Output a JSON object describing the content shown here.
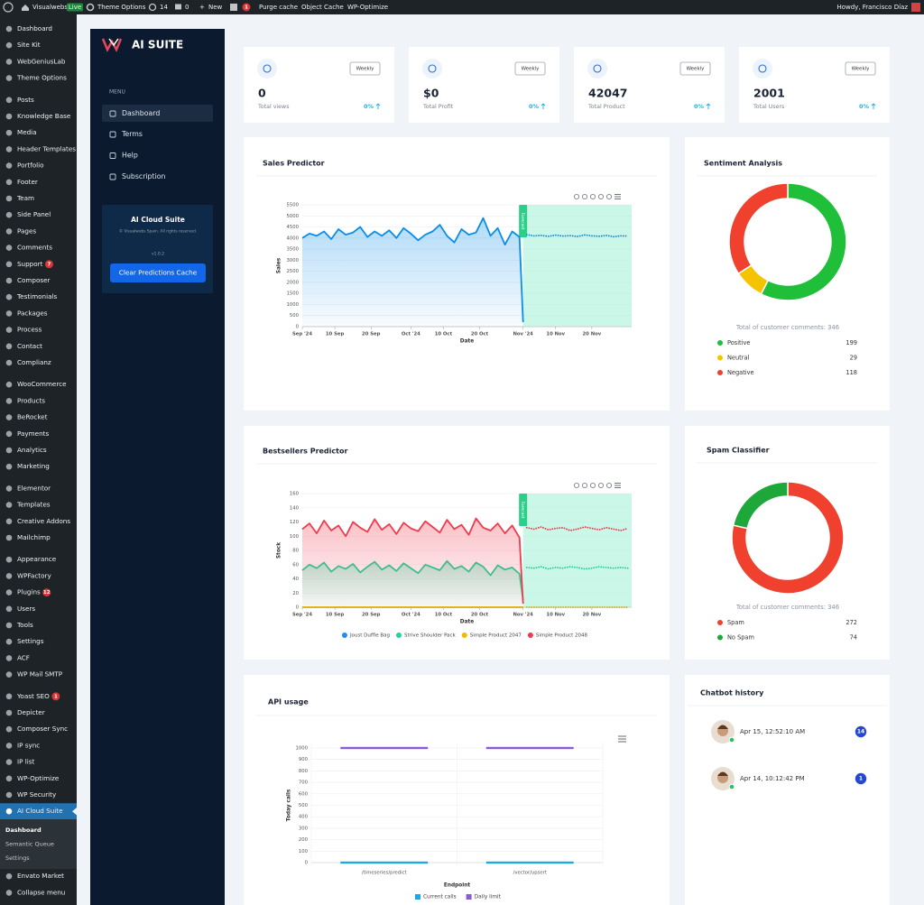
{
  "admin_bar": {
    "site": "Visualwebs",
    "live": "Live",
    "theme_options": "Theme Options",
    "updates": 14,
    "comments": 0,
    "new": "New",
    "seo_badge": 1,
    "purge_cache": "Purge cache",
    "object_cache": "Object Cache",
    "wp_optimize": "WP-Optimize",
    "howdy": "Howdy, Francisco Díaz"
  },
  "admin_menu": {
    "items": [
      {
        "label": "Dashboard"
      },
      {
        "label": "Site Kit"
      },
      {
        "label": "WebGeniusLab"
      },
      {
        "label": "Theme Options"
      },
      {
        "label": "Posts"
      },
      {
        "label": "Knowledge Base"
      },
      {
        "label": "Media"
      },
      {
        "label": "Header Templates"
      },
      {
        "label": "Portfolio"
      },
      {
        "label": "Footer"
      },
      {
        "label": "Team"
      },
      {
        "label": "Side Panel"
      },
      {
        "label": "Pages"
      },
      {
        "label": "Comments"
      },
      {
        "label": "Support",
        "badge": 7
      },
      {
        "label": "Composer"
      },
      {
        "label": "Testimonials"
      },
      {
        "label": "Packages"
      },
      {
        "label": "Process"
      },
      {
        "label": "Contact"
      },
      {
        "label": "Complianz"
      },
      {
        "label": "WooCommerce"
      },
      {
        "label": "Products"
      },
      {
        "label": "BeRocket"
      },
      {
        "label": "Payments"
      },
      {
        "label": "Analytics"
      },
      {
        "label": "Marketing"
      },
      {
        "label": "Elementor"
      },
      {
        "label": "Templates"
      },
      {
        "label": "Creative Addons"
      },
      {
        "label": "Mailchimp"
      },
      {
        "label": "Appearance"
      },
      {
        "label": "WPFactory"
      },
      {
        "label": "Plugins",
        "badge": 12
      },
      {
        "label": "Users"
      },
      {
        "label": "Tools"
      },
      {
        "label": "Settings"
      },
      {
        "label": "ACF"
      },
      {
        "label": "WP Mail SMTP"
      },
      {
        "label": "Yoast SEO",
        "badge": 1
      },
      {
        "label": "Depicter"
      },
      {
        "label": "Composer Sync"
      },
      {
        "label": "IP sync"
      },
      {
        "label": "IP list"
      },
      {
        "label": "WP-Optimize"
      },
      {
        "label": "WP Security"
      },
      {
        "label": "AI Cloud Suite",
        "submenu": [
          "Dashboard",
          "Semantic Queue",
          "Settings"
        ]
      },
      {
        "label": "Envato Market"
      },
      {
        "label": "Collapse menu"
      }
    ]
  },
  "plugin_sidebar": {
    "logo": "AI SUITE",
    "menu_heading": "MENU",
    "nav": [
      "Dashboard",
      "Terms",
      "Help",
      "Subscription"
    ],
    "card": {
      "title": "AI Cloud Suite",
      "copyright": "© Visualwebs Spain. All rights reserved.",
      "version": "v1.0.2",
      "button": "Clear Predictions Cache"
    }
  },
  "stats": [
    {
      "value": "0",
      "label": "Total views",
      "period": "Weekly",
      "change": "0%"
    },
    {
      "value": "$0",
      "label": "Total Profit",
      "period": "Weekly",
      "change": "0%"
    },
    {
      "value": "42047",
      "label": "Total Product",
      "period": "Weekly",
      "change": "0%"
    },
    {
      "value": "2001",
      "label": "Total Users",
      "period": "Weekly",
      "change": "0%"
    }
  ],
  "sales_predictor": {
    "type": "line",
    "title": "Sales Predictor",
    "x_label": "Date",
    "y_label": "Sales",
    "forecast_label": "Forecast",
    "x": [
      "2024-09-01",
      "2024-09-03",
      "2024-09-05",
      "2024-09-07",
      "2024-09-09",
      "2024-09-11",
      "2024-09-13",
      "2024-09-15",
      "2024-09-17",
      "2024-09-19",
      "2024-09-21",
      "2024-09-23",
      "2024-09-25",
      "2024-09-27",
      "2024-09-29",
      "2024-10-01",
      "2024-10-03",
      "2024-10-05",
      "2024-10-07",
      "2024-10-09",
      "2024-10-11",
      "2024-10-13",
      "2024-10-15",
      "2024-10-17",
      "2024-10-19",
      "2024-10-21",
      "2024-10-23",
      "2024-10-25",
      "2024-10-27",
      "2024-10-29",
      "2024-10-31",
      "2024-11-01",
      "2024-11-02",
      "2024-11-04",
      "2024-11-06",
      "2024-11-08",
      "2024-11-10",
      "2024-11-12",
      "2024-11-14",
      "2024-11-16",
      "2024-11-18",
      "2024-11-20",
      "2024-11-22",
      "2024-11-24",
      "2024-11-26",
      "2024-11-28",
      "2024-11-30"
    ],
    "xlim": [
      "2024-09-01",
      "2024-12-01"
    ],
    "xticks": [
      {
        "value": "2024-09-01",
        "label": "Sep '24"
      },
      {
        "value": "2024-09-10",
        "label": "10 Sep"
      },
      {
        "value": "2024-09-20",
        "label": "20 Sep"
      },
      {
        "value": "2024-10-01",
        "label": "Oct '24"
      },
      {
        "value": "2024-10-10",
        "label": "10 Oct"
      },
      {
        "value": "2024-10-20",
        "label": "20 Oct"
      },
      {
        "value": "2024-11-01",
        "label": "Nov '24"
      },
      {
        "value": "2024-11-10",
        "label": "10 Nov"
      },
      {
        "value": "2024-11-20",
        "label": "20 Nov"
      }
    ],
    "ylim": [
      0,
      5500
    ],
    "yticks": [
      0,
      500,
      1000,
      1500,
      2000,
      2500,
      3000,
      3500,
      4000,
      4500,
      5000,
      5500
    ],
    "grid": true,
    "series": [
      {
        "color": "#0a8de8",
        "values": [
          4000,
          4200,
          4100,
          4300,
          3950,
          4400,
          4150,
          4250,
          4500,
          4050,
          4300,
          4100,
          4350,
          4000,
          4450,
          4200,
          3900,
          4150,
          4300,
          4600,
          4100,
          3800,
          4400,
          4150,
          4250,
          4900,
          4100,
          4450,
          3700,
          4300,
          4050,
          200,
          null,
          null,
          null,
          null,
          null,
          null,
          null,
          null,
          null,
          null,
          null,
          null,
          null,
          null,
          null
        ],
        "forecast": [
          null,
          null,
          null,
          null,
          null,
          null,
          null,
          null,
          null,
          null,
          null,
          null,
          null,
          null,
          null,
          null,
          null,
          null,
          null,
          null,
          null,
          null,
          null,
          null,
          null,
          null,
          null,
          null,
          null,
          null,
          null,
          null,
          4150,
          4100,
          4120,
          4080,
          4130,
          4090,
          4110,
          4070,
          4140,
          4100,
          4080,
          4120,
          4060,
          4100,
          4090
        ]
      }
    ]
  },
  "sentiment_analysis": {
    "type": "pie",
    "title": "Sentiment Analysis",
    "total_label": "Total of customer comments: 346",
    "categories": [
      "Positive",
      "Neutral",
      "Negative"
    ],
    "values": [
      199,
      29,
      118
    ],
    "colors": [
      "#1fbf3a",
      "#f5c400",
      "#f0402e"
    ]
  },
  "bestsellers_predictor": {
    "type": "line",
    "title": "Bestsellers Predictor",
    "x_label": "Date",
    "y_label": "Stock",
    "forecast_label": "Forecast",
    "x": [
      "2024-09-01",
      "2024-09-03",
      "2024-09-05",
      "2024-09-07",
      "2024-09-09",
      "2024-09-11",
      "2024-09-13",
      "2024-09-15",
      "2024-09-17",
      "2024-09-19",
      "2024-09-21",
      "2024-09-23",
      "2024-09-25",
      "2024-09-27",
      "2024-09-29",
      "2024-10-01",
      "2024-10-03",
      "2024-10-05",
      "2024-10-07",
      "2024-10-09",
      "2024-10-11",
      "2024-10-13",
      "2024-10-15",
      "2024-10-17",
      "2024-10-19",
      "2024-10-21",
      "2024-10-23",
      "2024-10-25",
      "2024-10-27",
      "2024-10-29",
      "2024-10-31",
      "2024-11-01",
      "2024-11-02",
      "2024-11-04",
      "2024-11-06",
      "2024-11-08",
      "2024-11-10",
      "2024-11-12",
      "2024-11-14",
      "2024-11-16",
      "2024-11-18",
      "2024-11-20",
      "2024-11-22",
      "2024-11-24",
      "2024-11-26",
      "2024-11-28",
      "2024-11-30"
    ],
    "xlim": [
      "2024-09-01",
      "2024-12-01"
    ],
    "xticks": [
      {
        "value": "2024-09-01",
        "label": "Sep '24"
      },
      {
        "value": "2024-09-10",
        "label": "10 Sep"
      },
      {
        "value": "2024-09-20",
        "label": "20 Sep"
      },
      {
        "value": "2024-10-01",
        "label": "Oct '24"
      },
      {
        "value": "2024-10-10",
        "label": "10 Oct"
      },
      {
        "value": "2024-10-20",
        "label": "20 Oct"
      },
      {
        "value": "2024-11-01",
        "label": "Nov '24"
      },
      {
        "value": "2024-11-10",
        "label": "10 Nov"
      },
      {
        "value": "2024-11-20",
        "label": "20 Nov"
      }
    ],
    "ylim": [
      0,
      160
    ],
    "yticks": [
      0,
      20,
      40,
      60,
      80,
      100,
      120,
      140,
      160
    ],
    "grid": true,
    "series": [
      {
        "name": "Joust Duffle Bag",
        "color": "#1e8ff0",
        "values": [
          0,
          0,
          0,
          0,
          0,
          0,
          0,
          0,
          0,
          0,
          0,
          0,
          0,
          0,
          0,
          0,
          0,
          0,
          0,
          0,
          0,
          0,
          0,
          0,
          0,
          0,
          0,
          0,
          0,
          0,
          0,
          0,
          null,
          null,
          null,
          null,
          null,
          null,
          null,
          null,
          null,
          null,
          null,
          null,
          null,
          null,
          null
        ],
        "forecast": [
          null,
          null,
          null,
          null,
          null,
          null,
          null,
          null,
          null,
          null,
          null,
          null,
          null,
          null,
          null,
          null,
          null,
          null,
          null,
          null,
          null,
          null,
          null,
          null,
          null,
          null,
          null,
          null,
          null,
          null,
          null,
          null,
          0,
          0,
          0,
          0,
          0,
          0,
          0,
          0,
          0,
          0,
          0,
          0,
          0,
          0,
          0
        ]
      },
      {
        "name": "Strive Shoulder Pack",
        "color": "#1ed59b",
        "values": [
          52,
          60,
          55,
          63,
          50,
          58,
          54,
          61,
          49,
          57,
          64,
          53,
          59,
          51,
          62,
          55,
          48,
          60,
          56,
          52,
          65,
          54,
          58,
          50,
          63,
          57,
          45,
          59,
          53,
          56,
          47,
          10,
          null,
          null,
          null,
          null,
          null,
          null,
          null,
          null,
          null,
          null,
          null,
          null,
          null,
          null,
          null
        ],
        "forecast": [
          null,
          null,
          null,
          null,
          null,
          null,
          null,
          null,
          null,
          null,
          null,
          null,
          null,
          null,
          null,
          null,
          null,
          null,
          null,
          null,
          null,
          null,
          null,
          null,
          null,
          null,
          null,
          null,
          null,
          null,
          null,
          null,
          56,
          55,
          57,
          54,
          56,
          55,
          57,
          56,
          54,
          55,
          57,
          56,
          55,
          56,
          55
        ]
      },
      {
        "name": "Simple Product 2047",
        "color": "#f5b800",
        "values": [
          0,
          0,
          0,
          0,
          0,
          0,
          0,
          0,
          0,
          0,
          0,
          0,
          0,
          0,
          0,
          0,
          0,
          0,
          0,
          0,
          0,
          0,
          0,
          0,
          0,
          0,
          0,
          0,
          0,
          0,
          0,
          0,
          null,
          null,
          null,
          null,
          null,
          null,
          null,
          null,
          null,
          null,
          null,
          null,
          null,
          null,
          null
        ],
        "forecast": [
          null,
          null,
          null,
          null,
          null,
          null,
          null,
          null,
          null,
          null,
          null,
          null,
          null,
          null,
          null,
          null,
          null,
          null,
          null,
          null,
          null,
          null,
          null,
          null,
          null,
          null,
          null,
          null,
          null,
          null,
          null,
          null,
          0,
          0,
          0,
          0,
          0,
          0,
          0,
          0,
          0,
          0,
          0,
          0,
          0,
          0,
          0
        ]
      },
      {
        "name": "Simple Product 2048",
        "color": "#ef3b4e",
        "values": [
          110,
          118,
          104,
          122,
          108,
          115,
          100,
          120,
          112,
          106,
          124,
          109,
          117,
          103,
          119,
          111,
          107,
          121,
          113,
          105,
          123,
          110,
          116,
          102,
          125,
          112,
          108,
          118,
          104,
          115,
          98,
          5,
          null,
          null,
          null,
          null,
          null,
          null,
          null,
          null,
          null,
          null,
          null,
          null,
          null,
          null,
          null
        ],
        "forecast": [
          null,
          null,
          null,
          null,
          null,
          null,
          null,
          null,
          null,
          null,
          null,
          null,
          null,
          null,
          null,
          null,
          null,
          null,
          null,
          null,
          null,
          null,
          null,
          null,
          null,
          null,
          null,
          null,
          null,
          null,
          null,
          null,
          112,
          110,
          113,
          109,
          111,
          112,
          108,
          110,
          113,
          111,
          109,
          112,
          110,
          108,
          111
        ]
      }
    ]
  },
  "spam_classifier": {
    "type": "pie",
    "title": "Spam Classifier",
    "total_label": "Total of customer comments: 346",
    "categories": [
      "Spam",
      "No Spam"
    ],
    "values": [
      272,
      74
    ],
    "colors": [
      "#f0402e",
      "#1fa83a"
    ]
  },
  "api_usage": {
    "type": "bar",
    "title": "API usage",
    "x_label": "Endpoint",
    "y_label": "Today calls",
    "categories": [
      "/timeseries/predict",
      "/vector/upsert"
    ],
    "ylim": [
      0,
      1000
    ],
    "yticks": [
      0,
      100,
      200,
      300,
      400,
      500,
      600,
      700,
      800,
      900,
      1000
    ],
    "grid": true,
    "series": [
      {
        "name": "Current calls",
        "color": "#1ea7e4",
        "values": [
          0,
          0
        ]
      },
      {
        "name": "Daily limit",
        "color": "#8a5bd6",
        "values": [
          1000,
          1000
        ]
      }
    ]
  },
  "chatbot_history": {
    "title": "Chatbot history",
    "entries": [
      {
        "time": "Apr 15, 12:52:10 AM",
        "count": 14
      },
      {
        "time": "Apr 14, 10:12:42 PM",
        "count": 1
      }
    ]
  }
}
